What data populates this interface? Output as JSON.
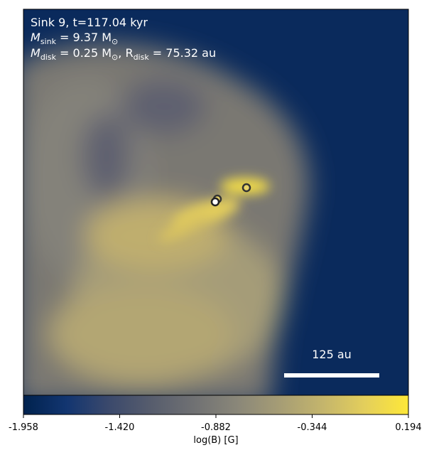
{
  "chart_data": {
    "type": "image",
    "annotations": [
      {
        "text": "Sink 9, t=117.04 kyr"
      },
      {
        "symbol": "M",
        "sub": "sink",
        "rest": " = 9.37 M",
        "unit_sub": "⊙"
      },
      {
        "symbol": "M",
        "sub": "disk",
        "rest": " = 0.25 M",
        "unit_sub": "⊙",
        "symbol2": ", R",
        "sub2": "disk",
        "rest2": " = 75.32 au"
      }
    ],
    "scale_bar": "125 au",
    "colorbar": {
      "label": "log(B) [G]",
      "lim": [
        -1.958,
        0.194
      ],
      "ticks": [
        -1.958,
        {
          "value": -1.42,
          "label": "-1.420"
        },
        -0.882,
        -0.344,
        0.194
      ],
      "colormap": [
        "#00224e",
        "#123570",
        "#3b496c",
        "#575d6d",
        "#707173",
        "#8a8779",
        "#a69d75",
        "#c4b56c",
        "#e4cf5b",
        "#fee838"
      ]
    }
  }
}
